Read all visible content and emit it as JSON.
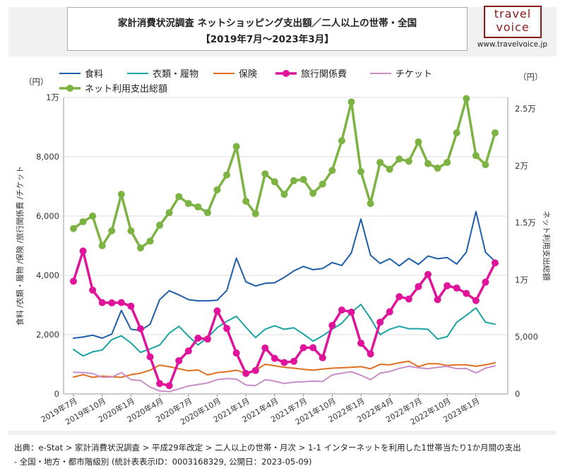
{
  "header": {
    "title_line1": "家計消費状況調査 ネットショッピング支出額／二人以上の世帯・全国",
    "title_line2": "【2019年7月〜2023年3月】"
  },
  "logo": {
    "line1": "travel",
    "line2": "voice",
    "url": "www.travelvoice.jp"
  },
  "footer": {
    "line1": "出典：e-Stat > 家計消費状況調査 > 平成29年改定 > 二人以上の世帯・月次 > 1-1 インターネットを利用した1世帯当たり1か月間の支出",
    "line2": "- 全国・地方・都市階級別 (統計表表示ID：0003168329, 公開日：2023-05-09)"
  },
  "chart_data": {
    "type": "line",
    "left_unit": "（円）",
    "right_unit": "（円）",
    "ylabel_left": "食料 /衣類・履物 /保険 /旅行関係費 /チケット",
    "ylabel_right": "ネット利用支出総額",
    "ylim_left": [
      0,
      10000
    ],
    "ylim_right": [
      0,
      26000
    ],
    "yticks_left": [
      "0",
      "2,000",
      "4,000",
      "6,000",
      "8,000",
      "1万"
    ],
    "yticks_right": [
      "0",
      "5,000",
      "1万",
      "1.5万",
      "2万",
      "2.5万"
    ],
    "x": [
      "2019-07",
      "2019-08",
      "2019-09",
      "2019-10",
      "2019-11",
      "2019-12",
      "2020-01",
      "2020-02",
      "2020-03",
      "2020-04",
      "2020-05",
      "2020-06",
      "2020-07",
      "2020-08",
      "2020-09",
      "2020-10",
      "2020-11",
      "2020-12",
      "2021-01",
      "2021-02",
      "2021-03",
      "2021-04",
      "2021-05",
      "2021-06",
      "2021-07",
      "2021-08",
      "2021-09",
      "2021-10",
      "2021-11",
      "2021-12",
      "2022-01",
      "2022-02",
      "2022-03",
      "2022-04",
      "2022-05",
      "2022-06",
      "2022-07",
      "2022-08",
      "2022-09",
      "2022-10",
      "2022-11",
      "2022-12",
      "2023-01",
      "2023-02",
      "2023-03"
    ],
    "xtick_labels": [
      "2019年7月",
      "2019年10月",
      "2020年1月",
      "2020年4月",
      "2020年7月",
      "2020年10月",
      "2021年1月",
      "2021年4月",
      "2021年7月",
      "2021年10月",
      "2022年1月",
      "2022年4月",
      "2022年7月",
      "2022年10月",
      "2023年1月"
    ],
    "legend": "top",
    "series": [
      {
        "name": "食料",
        "axis": "left",
        "color": "#1f5fa8",
        "width": 2,
        "marker": false,
        "values": [
          1880,
          1920,
          1980,
          1880,
          2020,
          2820,
          2180,
          2140,
          2350,
          3180,
          3480,
          3340,
          3180,
          3140,
          3140,
          3160,
          3490,
          4580,
          3780,
          3640,
          3730,
          3750,
          3930,
          4150,
          4300,
          4190,
          4230,
          4430,
          4330,
          4760,
          5900,
          4680,
          4400,
          4560,
          4320,
          4570,
          4370,
          4650,
          4560,
          4600,
          4380,
          4780,
          6150,
          4780,
          4470
        ]
      },
      {
        "name": "衣類・履物",
        "axis": "left",
        "color": "#1aa3a3",
        "width": 2,
        "marker": false,
        "values": [
          1500,
          1280,
          1420,
          1480,
          1830,
          1960,
          1720,
          1400,
          1520,
          1650,
          2050,
          2280,
          1950,
          1650,
          1900,
          2230,
          2450,
          2620,
          2250,
          1900,
          2180,
          2300,
          2180,
          2230,
          2020,
          1780,
          1960,
          2180,
          2380,
          2750,
          3020,
          2550,
          2000,
          2180,
          2280,
          2200,
          2200,
          2180,
          1850,
          1930,
          2420,
          2650,
          2900,
          2420,
          2350
        ]
      },
      {
        "name": "保険",
        "axis": "left",
        "color": "#e07020",
        "width": 2,
        "marker": false,
        "values": [
          570,
          650,
          560,
          600,
          580,
          560,
          650,
          700,
          800,
          970,
          920,
          850,
          780,
          810,
          640,
          720,
          750,
          800,
          700,
          800,
          1000,
          950,
          900,
          870,
          830,
          800,
          840,
          870,
          880,
          900,
          920,
          850,
          1000,
          980,
          1050,
          1100,
          920,
          1020,
          1020,
          960,
          980,
          980,
          930,
          980,
          1050
        ]
      },
      {
        "name": "旅行関係費",
        "axis": "left",
        "color": "#e0149a",
        "width": 3.5,
        "marker": true,
        "marker_size": 5,
        "values": [
          3800,
          4820,
          3500,
          3080,
          3070,
          3080,
          2960,
          2200,
          1250,
          350,
          280,
          1120,
          1450,
          1880,
          1850,
          2800,
          2210,
          1380,
          690,
          790,
          1550,
          1200,
          1060,
          1100,
          1560,
          1560,
          1220,
          2310,
          2830,
          2760,
          1710,
          1350,
          2420,
          2770,
          3280,
          3200,
          3620,
          4030,
          3180,
          3650,
          3570,
          3390,
          3150,
          3770,
          4420
        ]
      },
      {
        "name": "チケット",
        "axis": "left",
        "color": "#c890c8",
        "width": 2,
        "marker": false,
        "values": [
          730,
          720,
          690,
          560,
          570,
          720,
          480,
          450,
          230,
          100,
          80,
          170,
          270,
          320,
          370,
          480,
          520,
          500,
          300,
          280,
          480,
          430,
          350,
          400,
          410,
          430,
          420,
          640,
          700,
          750,
          630,
          480,
          700,
          760,
          860,
          930,
          880,
          850,
          900,
          930,
          850,
          860,
          710,
          870,
          950
        ]
      },
      {
        "name": "ネット利用支出総額",
        "axis": "right",
        "color": "#7cb342",
        "width": 3.5,
        "marker": true,
        "marker_size": 5,
        "values": [
          14500,
          15100,
          15600,
          13000,
          14300,
          17500,
          14300,
          12800,
          13400,
          14800,
          15900,
          17300,
          16700,
          16400,
          15900,
          17900,
          19200,
          21700,
          16900,
          15800,
          19300,
          18600,
          17500,
          18700,
          18800,
          17600,
          18400,
          19600,
          22200,
          25600,
          19500,
          16700,
          20300,
          19700,
          20600,
          20400,
          22100,
          20200,
          19800,
          20300,
          22900,
          25900,
          20900,
          20100,
          22900
        ]
      }
    ]
  }
}
